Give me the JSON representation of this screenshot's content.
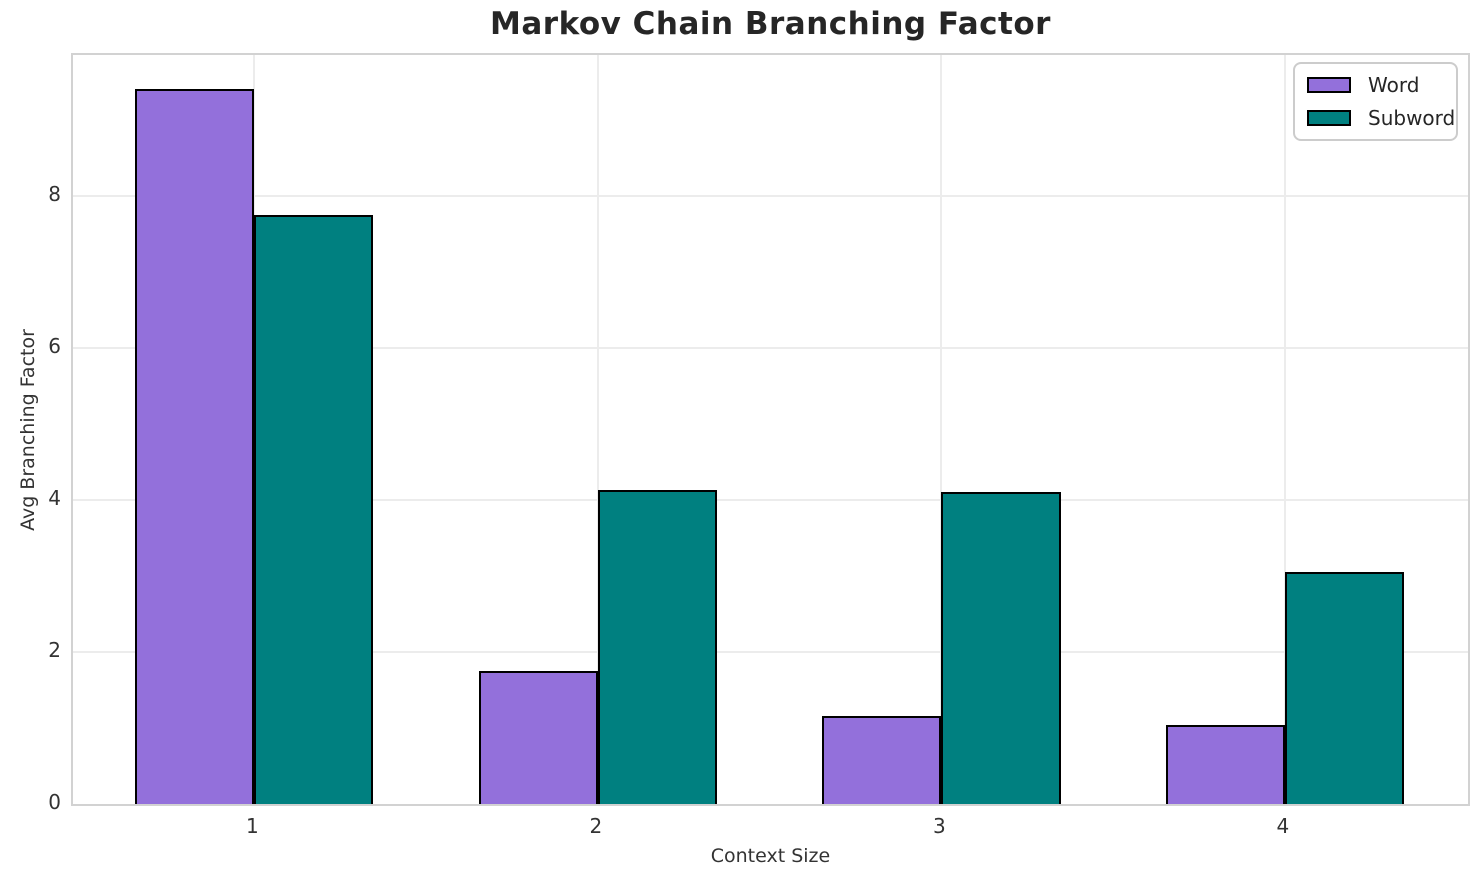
{
  "chart_data": {
    "type": "bar",
    "title": "Markov Chain Branching Factor",
    "xlabel": "Context Size",
    "ylabel": "Avg Branching Factor",
    "categories": [
      "1",
      "2",
      "3",
      "4"
    ],
    "series": [
      {
        "name": "Word",
        "color": "#9370DB",
        "values": [
          9.41,
          1.75,
          1.16,
          1.04
        ]
      },
      {
        "name": "Subword",
        "color": "#008080",
        "values": [
          7.75,
          4.13,
          4.11,
          3.05
        ]
      }
    ],
    "yticks": [
      0,
      2,
      4,
      6,
      8
    ],
    "ylim": [
      0,
      9.86
    ],
    "bar_edge_color": "#000000",
    "grid": true,
    "gridline_color": "#ececec",
    "spine_color": "#d2d2d2",
    "legend_position": "upper right",
    "legend_labels": [
      "Word",
      "Subword"
    ]
  }
}
